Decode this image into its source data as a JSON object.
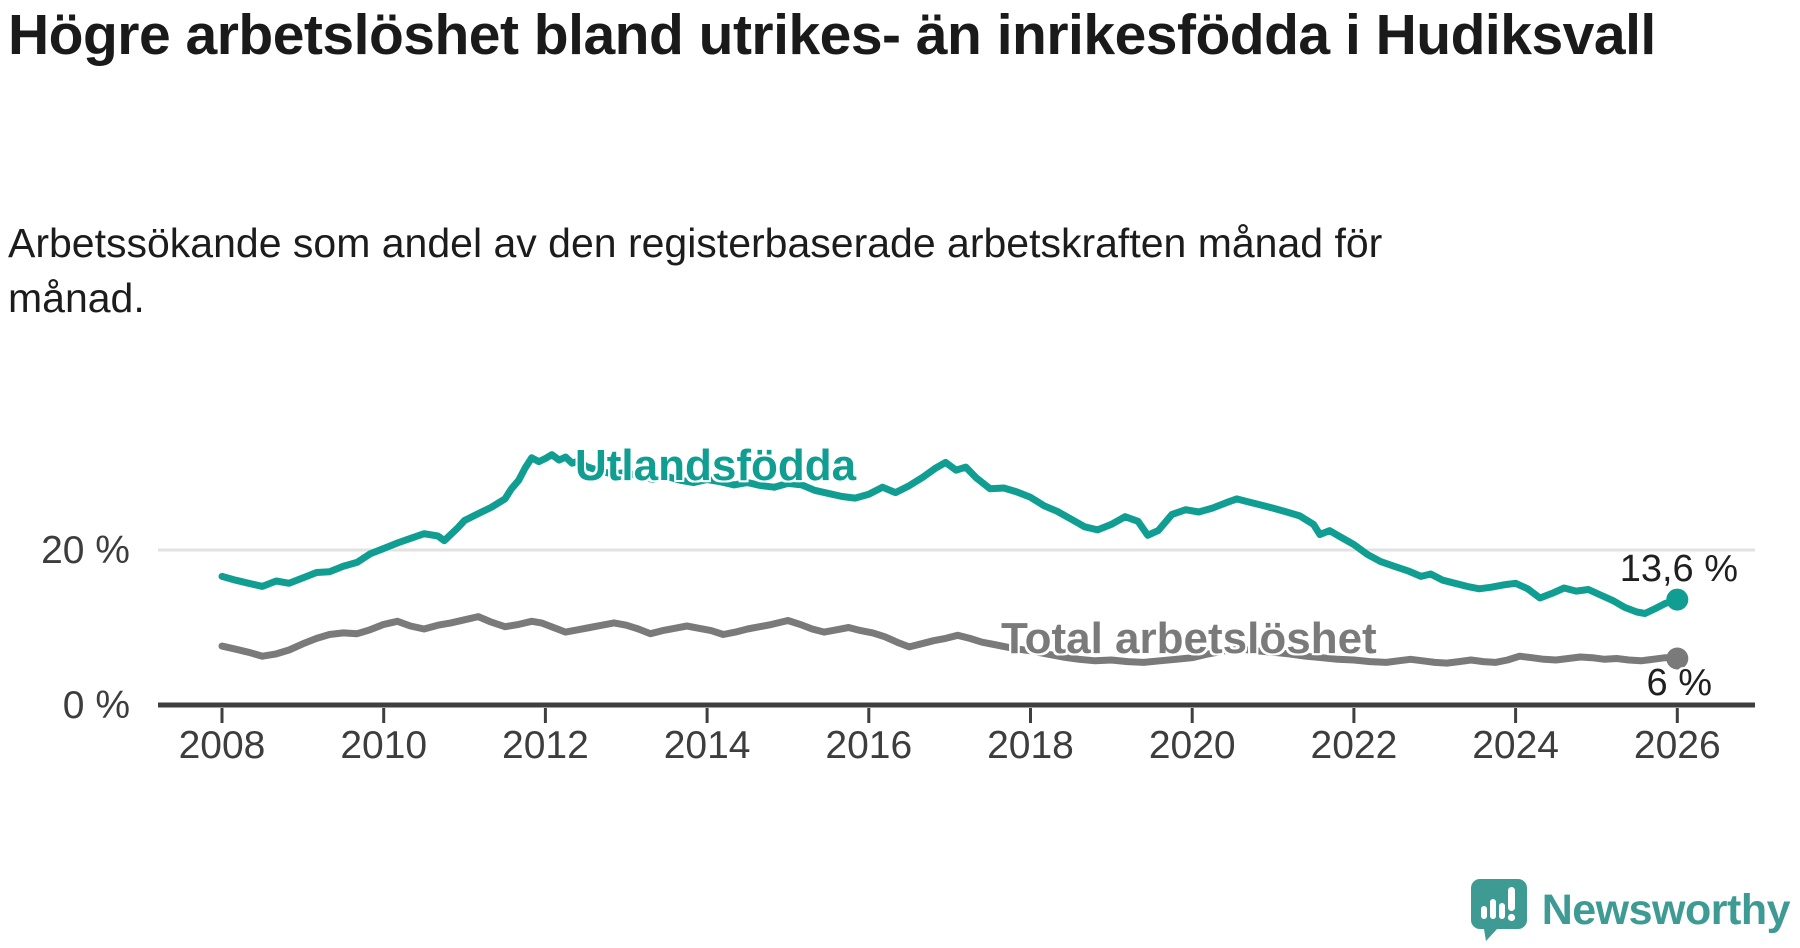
{
  "header": {
    "title": "Högre arbetslöshet bland utrikes- än inrikesfödda i Hudiksvall",
    "subtitle": "Arbetssökande som andel av den registerbaserade arbetskraften månad för månad."
  },
  "chart_data": {
    "type": "line",
    "title": "Högre arbetslöshet bland utrikes- än inrikesfödda i Hudiksvall",
    "xlabel": "",
    "ylabel": "Arbetssökande som andel av den registerbaserade arbetskraften",
    "x_range": [
      2008,
      2026.3
    ],
    "ylim": [
      0,
      40
    ],
    "grid": "single horizontal gridline at 20 %",
    "legend_position": "inline labels next to lines",
    "x_ticks": [
      "2008",
      "2010",
      "2012",
      "2014",
      "2016",
      "2018",
      "2020",
      "2022",
      "2024",
      "2026"
    ],
    "y_ticks": [
      {
        "label": "20 %",
        "value": 20
      },
      {
        "label": "0 %",
        "value": 0
      }
    ],
    "series": [
      {
        "name": "Utlandsfödda",
        "color": "#119e92",
        "end_label": "13,6 %",
        "end_value": 13.6,
        "points": [
          [
            2008.0,
            16.6
          ],
          [
            2008.17,
            16.1
          ],
          [
            2008.33,
            15.7
          ],
          [
            2008.5,
            15.3
          ],
          [
            2008.67,
            16.0
          ],
          [
            2008.83,
            15.7
          ],
          [
            2009.0,
            16.4
          ],
          [
            2009.17,
            17.1
          ],
          [
            2009.33,
            17.2
          ],
          [
            2009.5,
            17.9
          ],
          [
            2009.67,
            18.4
          ],
          [
            2009.83,
            19.5
          ],
          [
            2010.0,
            20.2
          ],
          [
            2010.17,
            20.9
          ],
          [
            2010.33,
            21.5
          ],
          [
            2010.5,
            22.1
          ],
          [
            2010.67,
            21.8
          ],
          [
            2010.75,
            21.2
          ],
          [
            2010.92,
            22.9
          ],
          [
            2011.0,
            23.8
          ],
          [
            2011.17,
            24.7
          ],
          [
            2011.33,
            25.5
          ],
          [
            2011.5,
            26.6
          ],
          [
            2011.58,
            27.9
          ],
          [
            2011.67,
            29.0
          ],
          [
            2011.75,
            30.6
          ],
          [
            2011.83,
            31.9
          ],
          [
            2011.92,
            31.4
          ],
          [
            2012.0,
            31.8
          ],
          [
            2012.08,
            32.3
          ],
          [
            2012.17,
            31.6
          ],
          [
            2012.25,
            32.0
          ],
          [
            2012.33,
            31.2
          ],
          [
            2012.42,
            31.5
          ],
          [
            2012.5,
            30.8
          ],
          [
            2012.67,
            30.2
          ],
          [
            2012.83,
            29.8
          ],
          [
            2013.0,
            30.0
          ],
          [
            2013.17,
            29.5
          ],
          [
            2013.33,
            29.1
          ],
          [
            2013.5,
            29.5
          ],
          [
            2013.67,
            29.0
          ],
          [
            2013.83,
            28.7
          ],
          [
            2014.0,
            29.1
          ],
          [
            2014.17,
            28.8
          ],
          [
            2014.33,
            28.4
          ],
          [
            2014.5,
            28.7
          ],
          [
            2014.67,
            28.3
          ],
          [
            2014.83,
            28.1
          ],
          [
            2015.0,
            28.6
          ],
          [
            2015.17,
            28.4
          ],
          [
            2015.33,
            27.7
          ],
          [
            2015.5,
            27.3
          ],
          [
            2015.67,
            26.9
          ],
          [
            2015.83,
            26.7
          ],
          [
            2016.0,
            27.2
          ],
          [
            2016.17,
            28.1
          ],
          [
            2016.33,
            27.4
          ],
          [
            2016.5,
            28.3
          ],
          [
            2016.67,
            29.4
          ],
          [
            2016.83,
            30.6
          ],
          [
            2016.95,
            31.3
          ],
          [
            2017.08,
            30.3
          ],
          [
            2017.2,
            30.7
          ],
          [
            2017.33,
            29.3
          ],
          [
            2017.5,
            27.9
          ],
          [
            2017.67,
            28.0
          ],
          [
            2017.83,
            27.5
          ],
          [
            2018.0,
            26.8
          ],
          [
            2018.17,
            25.7
          ],
          [
            2018.33,
            25.0
          ],
          [
            2018.5,
            24.0
          ],
          [
            2018.67,
            23.0
          ],
          [
            2018.83,
            22.6
          ],
          [
            2019.0,
            23.3
          ],
          [
            2019.17,
            24.3
          ],
          [
            2019.33,
            23.7
          ],
          [
            2019.45,
            21.9
          ],
          [
            2019.58,
            22.5
          ],
          [
            2019.75,
            24.6
          ],
          [
            2019.92,
            25.2
          ],
          [
            2020.08,
            24.9
          ],
          [
            2020.25,
            25.4
          ],
          [
            2020.42,
            26.1
          ],
          [
            2020.55,
            26.6
          ],
          [
            2020.7,
            26.2
          ],
          [
            2020.85,
            25.8
          ],
          [
            2021.0,
            25.4
          ],
          [
            2021.17,
            24.9
          ],
          [
            2021.33,
            24.4
          ],
          [
            2021.5,
            23.3
          ],
          [
            2021.58,
            22.0
          ],
          [
            2021.7,
            22.5
          ],
          [
            2021.83,
            21.7
          ],
          [
            2022.0,
            20.7
          ],
          [
            2022.17,
            19.4
          ],
          [
            2022.33,
            18.5
          ],
          [
            2022.5,
            17.9
          ],
          [
            2022.67,
            17.3
          ],
          [
            2022.83,
            16.6
          ],
          [
            2022.95,
            16.9
          ],
          [
            2023.1,
            16.1
          ],
          [
            2023.25,
            15.7
          ],
          [
            2023.4,
            15.3
          ],
          [
            2023.55,
            15.0
          ],
          [
            2023.7,
            15.2
          ],
          [
            2023.85,
            15.5
          ],
          [
            2024.0,
            15.7
          ],
          [
            2024.15,
            15.0
          ],
          [
            2024.3,
            13.8
          ],
          [
            2024.45,
            14.4
          ],
          [
            2024.6,
            15.1
          ],
          [
            2024.75,
            14.7
          ],
          [
            2024.9,
            14.9
          ],
          [
            2025.05,
            14.2
          ],
          [
            2025.2,
            13.5
          ],
          [
            2025.35,
            12.6
          ],
          [
            2025.5,
            12.0
          ],
          [
            2025.6,
            11.8
          ],
          [
            2025.72,
            12.4
          ],
          [
            2025.85,
            13.1
          ],
          [
            2026.0,
            13.6
          ]
        ]
      },
      {
        "name": "Total arbetslöshet",
        "color": "#7a7a7a",
        "end_label": "6 %",
        "end_value": 6,
        "points": [
          [
            2008.0,
            7.6
          ],
          [
            2008.17,
            7.2
          ],
          [
            2008.33,
            6.8
          ],
          [
            2008.5,
            6.3
          ],
          [
            2008.67,
            6.6
          ],
          [
            2008.83,
            7.1
          ],
          [
            2009.0,
            7.9
          ],
          [
            2009.17,
            8.6
          ],
          [
            2009.33,
            9.1
          ],
          [
            2009.5,
            9.3
          ],
          [
            2009.67,
            9.2
          ],
          [
            2009.83,
            9.7
          ],
          [
            2010.0,
            10.4
          ],
          [
            2010.17,
            10.8
          ],
          [
            2010.33,
            10.2
          ],
          [
            2010.5,
            9.8
          ],
          [
            2010.67,
            10.3
          ],
          [
            2010.83,
            10.6
          ],
          [
            2011.0,
            11.0
          ],
          [
            2011.17,
            11.4
          ],
          [
            2011.33,
            10.7
          ],
          [
            2011.5,
            10.1
          ],
          [
            2011.67,
            10.4
          ],
          [
            2011.83,
            10.8
          ],
          [
            2011.95,
            10.6
          ],
          [
            2012.1,
            10.0
          ],
          [
            2012.25,
            9.4
          ],
          [
            2012.4,
            9.7
          ],
          [
            2012.55,
            10.0
          ],
          [
            2012.7,
            10.3
          ],
          [
            2012.85,
            10.6
          ],
          [
            2013.0,
            10.3
          ],
          [
            2013.15,
            9.8
          ],
          [
            2013.3,
            9.2
          ],
          [
            2013.45,
            9.6
          ],
          [
            2013.6,
            9.9
          ],
          [
            2013.75,
            10.2
          ],
          [
            2013.9,
            9.9
          ],
          [
            2014.05,
            9.6
          ],
          [
            2014.2,
            9.1
          ],
          [
            2014.35,
            9.4
          ],
          [
            2014.5,
            9.8
          ],
          [
            2014.65,
            10.1
          ],
          [
            2014.8,
            10.4
          ],
          [
            2015.0,
            10.9
          ],
          [
            2015.15,
            10.4
          ],
          [
            2015.3,
            9.8
          ],
          [
            2015.45,
            9.4
          ],
          [
            2015.6,
            9.7
          ],
          [
            2015.75,
            10.0
          ],
          [
            2015.9,
            9.6
          ],
          [
            2016.05,
            9.3
          ],
          [
            2016.2,
            8.8
          ],
          [
            2016.35,
            8.1
          ],
          [
            2016.5,
            7.5
          ],
          [
            2016.65,
            7.9
          ],
          [
            2016.8,
            8.3
          ],
          [
            2016.95,
            8.6
          ],
          [
            2017.1,
            9.0
          ],
          [
            2017.25,
            8.6
          ],
          [
            2017.4,
            8.1
          ],
          [
            2017.55,
            7.8
          ],
          [
            2017.7,
            7.5
          ],
          [
            2017.85,
            7.2
          ],
          [
            2018.0,
            7.0
          ],
          [
            2018.2,
            6.6
          ],
          [
            2018.4,
            6.2
          ],
          [
            2018.6,
            5.9
          ],
          [
            2018.8,
            5.7
          ],
          [
            2019.0,
            5.8
          ],
          [
            2019.2,
            5.6
          ],
          [
            2019.4,
            5.5
          ],
          [
            2019.6,
            5.7
          ],
          [
            2019.8,
            5.9
          ],
          [
            2020.0,
            6.1
          ],
          [
            2020.2,
            6.6
          ],
          [
            2020.4,
            7.0
          ],
          [
            2020.6,
            7.2
          ],
          [
            2020.8,
            7.0
          ],
          [
            2021.0,
            6.8
          ],
          [
            2021.2,
            6.6
          ],
          [
            2021.4,
            6.3
          ],
          [
            2021.6,
            6.1
          ],
          [
            2021.8,
            5.9
          ],
          [
            2022.0,
            5.8
          ],
          [
            2022.2,
            5.6
          ],
          [
            2022.4,
            5.5
          ],
          [
            2022.55,
            5.7
          ],
          [
            2022.7,
            5.9
          ],
          [
            2022.85,
            5.7
          ],
          [
            2023.0,
            5.5
          ],
          [
            2023.15,
            5.4
          ],
          [
            2023.3,
            5.6
          ],
          [
            2023.45,
            5.8
          ],
          [
            2023.6,
            5.6
          ],
          [
            2023.75,
            5.5
          ],
          [
            2023.9,
            5.8
          ],
          [
            2024.05,
            6.3
          ],
          [
            2024.2,
            6.1
          ],
          [
            2024.35,
            5.9
          ],
          [
            2024.5,
            5.8
          ],
          [
            2024.65,
            6.0
          ],
          [
            2024.8,
            6.2
          ],
          [
            2024.95,
            6.1
          ],
          [
            2025.1,
            5.9
          ],
          [
            2025.25,
            6.0
          ],
          [
            2025.4,
            5.8
          ],
          [
            2025.55,
            5.7
          ],
          [
            2025.7,
            5.9
          ],
          [
            2025.85,
            6.1
          ],
          [
            2026.0,
            6.0
          ]
        ]
      }
    ]
  },
  "branding": {
    "name": "Newsworthy",
    "color": "#3d9b93",
    "icon": "newsworthy-speech-bubble-bar-chart-icon"
  },
  "colors": {
    "background": "#ffffff",
    "title_text": "#1a1a1a",
    "axis": "#3f3f3f",
    "tick_text": "#3d3d3d",
    "gridline": "#e2e2e2",
    "series_foreign_born": "#119e92",
    "series_total": "#7a7a7a"
  }
}
